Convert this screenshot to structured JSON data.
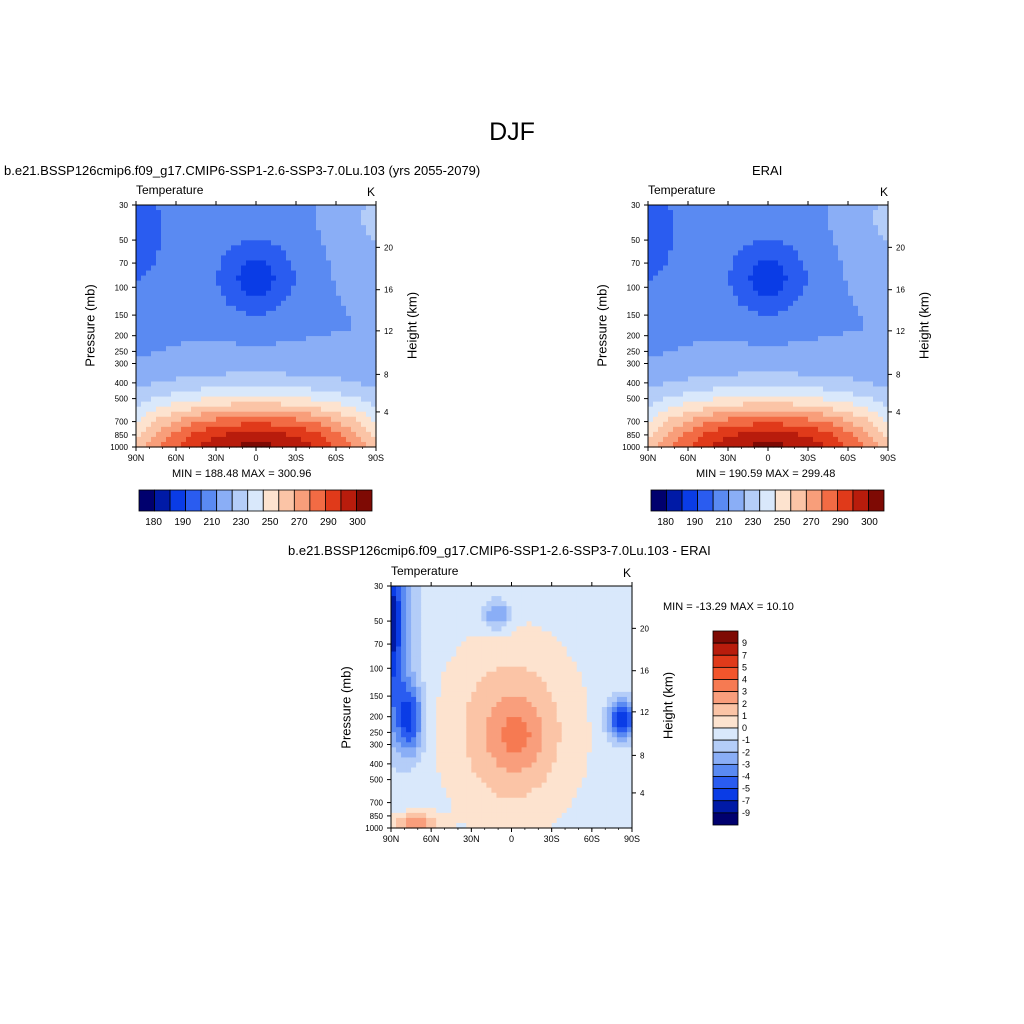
{
  "figure": {
    "title": "DJF"
  },
  "panels": [
    {
      "id": "model",
      "title": "b.e21.BSSP126cmip6.f09_g17.CMIP6-SSP1-2.6-SSP3-7.0Lu.103 (yrs 2055-2079)",
      "left_string": "Temperature",
      "right_string": "K",
      "minmax": "MIN = 188.48  MAX = 300.96",
      "ylabel": "Pressure (mb)",
      "y2label": "Height (km)"
    },
    {
      "id": "obs",
      "title": "ERAI",
      "left_string": "Temperature",
      "right_string": "K",
      "minmax": "MIN = 190.59  MAX = 299.48",
      "ylabel": "Pressure (mb)",
      "y2label": "Height (km)"
    },
    {
      "id": "diff",
      "title": "b.e21.BSSP126cmip6.f09_g17.CMIP6-SSP1-2.6-SSP3-7.0Lu.103 - ERAI",
      "left_string": "Temperature",
      "right_string": "K",
      "minmax": "MIN = -13.29  MAX =  10.10",
      "ylabel": "Pressure (mb)",
      "y2label": "Height (km)"
    }
  ],
  "chart_data": [
    {
      "type": "heatmap",
      "panel": "model",
      "x_tick_labels": [
        "90N",
        "60N",
        "30N",
        "0",
        "30S",
        "60S",
        "90S"
      ],
      "y_tick_labels": [
        "30",
        "50",
        "70",
        "100",
        "150",
        "200",
        "250",
        "300",
        "400",
        "500",
        "700",
        "850",
        "1000"
      ],
      "y2_tick_labels": [
        "20",
        "16",
        "12",
        "8",
        "4"
      ],
      "min": 188.48,
      "max": 300.96,
      "colorbar_labels": [
        "180",
        "190",
        "210",
        "230",
        "250",
        "270",
        "290",
        "300"
      ]
    },
    {
      "type": "heatmap",
      "panel": "obs",
      "x_tick_labels": [
        "90N",
        "60N",
        "30N",
        "0",
        "30S",
        "60S",
        "90S"
      ],
      "y_tick_labels": [
        "30",
        "50",
        "70",
        "100",
        "150",
        "200",
        "250",
        "300",
        "400",
        "500",
        "700",
        "850",
        "1000"
      ],
      "y2_tick_labels": [
        "20",
        "16",
        "12",
        "8",
        "4"
      ],
      "min": 190.59,
      "max": 299.48,
      "colorbar_labels": [
        "180",
        "190",
        "210",
        "230",
        "250",
        "270",
        "290",
        "300"
      ]
    },
    {
      "type": "heatmap",
      "panel": "diff",
      "x_tick_labels": [
        "90N",
        "60N",
        "30N",
        "0",
        "30S",
        "60S",
        "90S"
      ],
      "y_tick_labels": [
        "30",
        "50",
        "70",
        "100",
        "150",
        "200",
        "250",
        "300",
        "400",
        "500",
        "700",
        "850",
        "1000"
      ],
      "y2_tick_labels": [
        "20",
        "16",
        "12",
        "8",
        "4"
      ],
      "min": -13.29,
      "max": 10.1,
      "colorbar_labels": [
        "9",
        "7",
        "5",
        "4",
        "3",
        "2",
        "1",
        "0",
        "-1",
        "-2",
        "-3",
        "-4",
        "-5",
        "-7",
        "-9"
      ]
    }
  ],
  "colors": {
    "temperature_scale": [
      "#00006e",
      "#001aa6",
      "#0a3ce6",
      "#2a5cf0",
      "#5a8af2",
      "#8aaef6",
      "#b4cdf8",
      "#d9e8fb",
      "#fde3cf",
      "#fbc4a6",
      "#f89e7a",
      "#f26b44",
      "#e03a1a",
      "#b81c0c",
      "#7e0a04"
    ],
    "difference_scale": [
      "#7e0a04",
      "#b81c0c",
      "#e03a1a",
      "#f2552c",
      "#f67a52",
      "#f99e7c",
      "#fbc4a6",
      "#fde3cf",
      "#d9e8fb",
      "#b4cdf8",
      "#8aaef6",
      "#5a8af2",
      "#2a5cf0",
      "#0a3ce6",
      "#001aa6",
      "#00006e"
    ]
  }
}
